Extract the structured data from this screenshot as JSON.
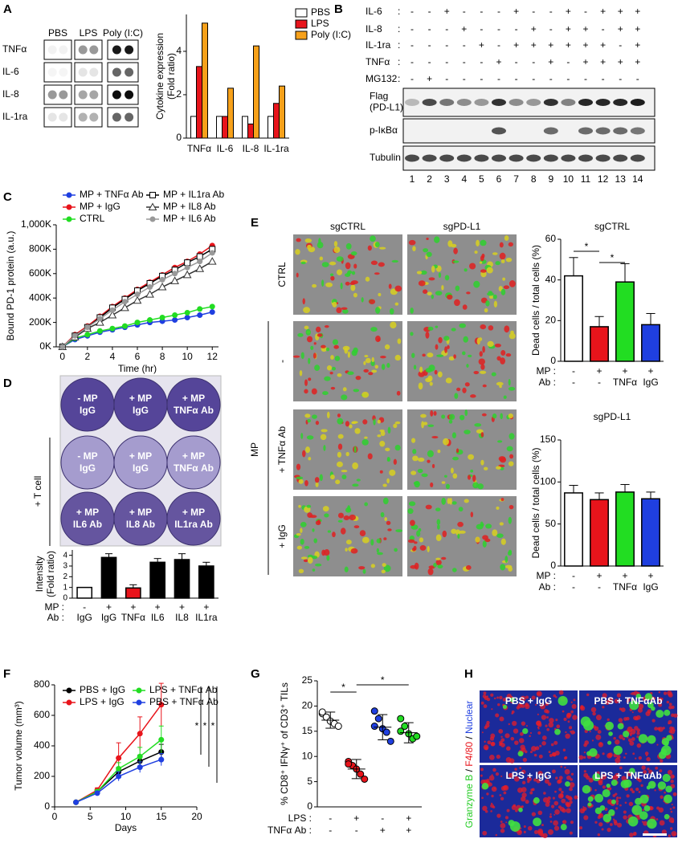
{
  "panel_labels": [
    "A",
    "B",
    "C",
    "D",
    "E",
    "F",
    "G",
    "H"
  ],
  "dot_blot": {
    "columns": [
      "PBS",
      "LPS",
      "Poly (I:C)"
    ],
    "rows": [
      "TNFα",
      "IL-6",
      "IL-8",
      "IL-1ra"
    ]
  },
  "western_blot": {
    "separator": ":",
    "treatments": [
      {
        "name": "IL-6",
        "signs": [
          "-",
          "-",
          "+",
          "-",
          "-",
          "-",
          "+",
          "-",
          "-",
          "+",
          "-",
          "+",
          "+",
          "+"
        ]
      },
      {
        "name": "IL-8",
        "signs": [
          "-",
          "-",
          "-",
          "+",
          "-",
          "-",
          "-",
          "+",
          "-",
          "+",
          "+",
          "-",
          "+",
          "+"
        ]
      },
      {
        "name": "IL-1ra",
        "signs": [
          "-",
          "-",
          "-",
          "-",
          "+",
          "-",
          "+",
          "+",
          "+",
          "+",
          "+",
          "+",
          "-",
          "+"
        ]
      },
      {
        "name": "TNFα",
        "signs": [
          "-",
          "-",
          "-",
          "-",
          "-",
          "+",
          "-",
          "-",
          "+",
          "-",
          "+",
          "+",
          "+",
          "+"
        ]
      },
      {
        "name": "MG132",
        "signs": [
          "-",
          "+",
          "-",
          "-",
          "-",
          "-",
          "-",
          "-",
          "-",
          "-",
          "-",
          "-",
          "-",
          "-"
        ]
      }
    ],
    "bands": [
      [
        "Flag",
        "(PD-L1)"
      ],
      [
        "p-IκBα"
      ],
      [
        "Tubulin"
      ]
    ],
    "lanes": [
      1,
      2,
      3,
      4,
      5,
      6,
      7,
      8,
      9,
      10,
      11,
      12,
      13,
      14
    ]
  },
  "plate": {
    "wells": [
      [
        "- MP",
        "IgG"
      ],
      [
        "+ MP",
        "IgG"
      ],
      [
        "+ MP",
        "TNFα Ab"
      ],
      [
        "- MP",
        "IgG"
      ],
      [
        "+ MP",
        "IgG"
      ],
      [
        "+ MP",
        "TNFα Ab"
      ],
      [
        "+ MP",
        "IL6 Ab"
      ],
      [
        "+ MP",
        "IL8 Ab"
      ],
      [
        "+ MP",
        "IL1ra Ab"
      ]
    ],
    "side_label": "+ T cell"
  },
  "micrographs": {
    "columns": [
      "sgCTRL",
      "sgPD-L1"
    ],
    "rows": [
      "CTRL",
      "-",
      "+ TNFα Ab",
      "+ IgG"
    ],
    "group_label": "MP"
  },
  "fluorescence": {
    "panels": [
      "PBS + IgG",
      "PBS + TNFαAb",
      "LPS + IgG",
      "LPS + TNFαAb"
    ],
    "stains": [
      {
        "name": "Granzyme B",
        "color": "#22cc22"
      },
      {
        "name": "F4/80",
        "color": "#e8141b"
      },
      {
        "name": "Nuclear",
        "color": "#1f3fe0"
      }
    ],
    "separator": " / "
  },
  "chart_data": [
    {
      "type": "bar",
      "y_label": [
        "Cytokine expression",
        "(Fold ratio)"
      ],
      "categories": [
        "TNFα",
        "IL-6",
        "IL-8",
        "IL-1ra"
      ],
      "series": [
        {
          "name": "PBS",
          "color": "#ffffff",
          "values": [
            1,
            1,
            1,
            1
          ]
        },
        {
          "name": "LPS",
          "color": "#e8141b",
          "values": [
            3.3,
            1,
            0.65,
            1.6
          ]
        },
        {
          "name": "Poly (I:C)",
          "color": "#f7a11a",
          "values": [
            5.3,
            2.3,
            4.25,
            2.4
          ]
        }
      ],
      "ylim": [
        0,
        5.7
      ],
      "yticks": [
        0,
        2,
        4
      ],
      "legend": "top-right"
    },
    {
      "type": "line",
      "x_label": "Time (hr)",
      "y_label": "Bound PD-1 protein (a.u.)",
      "x": [
        0,
        1,
        2,
        3,
        4,
        5,
        6,
        7,
        8,
        9,
        10,
        11,
        12
      ],
      "series": [
        {
          "name": "MP + TNFα Ab",
          "color": "#1f3fe0",
          "marker": "circle",
          "values": [
            0,
            60000,
            90000,
            120000,
            140000,
            160000,
            180000,
            200000,
            210000,
            220000,
            240000,
            260000,
            285000
          ]
        },
        {
          "name": "MP + IgG",
          "color": "#e8141b",
          "marker": "circle",
          "values": [
            0,
            100000,
            170000,
            250000,
            330000,
            400000,
            470000,
            530000,
            590000,
            650000,
            700000,
            760000,
            830000
          ]
        },
        {
          "name": "CTRL",
          "color": "#22dd22",
          "marker": "circle",
          "values": [
            0,
            70000,
            100000,
            130000,
            150000,
            170000,
            200000,
            220000,
            240000,
            260000,
            280000,
            310000,
            330000
          ]
        },
        {
          "name": "MP + IL1ra Ab",
          "color": "#000000",
          "marker": "square",
          "values": [
            0,
            90000,
            160000,
            240000,
            320000,
            390000,
            460000,
            520000,
            580000,
            630000,
            690000,
            740000,
            800000
          ]
        },
        {
          "name": "MP + IL8 Ab",
          "color": "#333333",
          "marker": "triangle",
          "values": [
            0,
            80000,
            150000,
            200000,
            260000,
            320000,
            380000,
            430000,
            490000,
            540000,
            590000,
            640000,
            700000
          ]
        },
        {
          "name": "MP + IL6 Ab",
          "color": "#999999",
          "marker": "circle",
          "values": [
            0,
            90000,
            160000,
            230000,
            300000,
            370000,
            430000,
            490000,
            550000,
            600000,
            650000,
            700000,
            770000
          ]
        }
      ],
      "xlim": [
        -0.5,
        12.5
      ],
      "xticks": [
        0,
        2,
        4,
        6,
        8,
        10,
        12
      ],
      "ylim": [
        0,
        1000000
      ],
      "yticks": [
        {
          "value": 0,
          "label": "0K"
        },
        {
          "value": 200000,
          "label": "200K"
        },
        {
          "value": 400000,
          "label": "400K"
        },
        {
          "value": 600000,
          "label": "600K"
        },
        {
          "value": 800000,
          "label": "800K"
        },
        {
          "value": 1000000,
          "label": "1,000K"
        }
      ]
    },
    {
      "type": "bar",
      "y_label": [
        "Intensity",
        "(Fold ratio)"
      ],
      "values": [
        1,
        3.8,
        0.95,
        3.35,
        3.6,
        3.0
      ],
      "errors": [
        null,
        0.35,
        0.3,
        0.35,
        0.55,
        0.35
      ],
      "colors": [
        "#ffffff",
        "#000000",
        "#e8141b",
        "#000000",
        "#000000",
        "#000000"
      ],
      "rows": [
        {
          "name": "MP :",
          "labels": [
            "-",
            "+",
            "+",
            "+",
            "+",
            "+"
          ]
        },
        {
          "name": "Ab :",
          "labels": [
            "IgG",
            "IgG",
            "TNFα",
            "IL6",
            "IL8",
            "IL1ra"
          ]
        }
      ],
      "ylim": [
        0,
        4.5
      ],
      "yticks": [
        0,
        1,
        2,
        3,
        4
      ]
    },
    {
      "type": "bar",
      "title": "sgCTRL",
      "y_label": "Dead cells / total cells (%)",
      "values": [
        42,
        17,
        39,
        18
      ],
      "errors": [
        9,
        5,
        9,
        5.5
      ],
      "colors": [
        "#ffffff",
        "#e8141b",
        "#22dd22",
        "#1f3fe0"
      ],
      "rows": [
        {
          "name": "MP :",
          "labels": [
            "-",
            "+",
            "+",
            "+"
          ]
        },
        {
          "name": "Ab :",
          "labels": [
            "-",
            "-",
            "TNFα",
            "IgG"
          ]
        }
      ],
      "ylim": [
        0,
        60
      ],
      "yticks": [
        0,
        20,
        40,
        60
      ],
      "annotations": [
        "*",
        "*"
      ]
    },
    {
      "type": "bar",
      "title": "sgPD-L1",
      "y_label": "Dead cells / total cells (%)",
      "values": [
        87,
        79,
        88,
        80
      ],
      "errors": [
        9,
        8,
        9,
        8
      ],
      "colors": [
        "#ffffff",
        "#e8141b",
        "#22dd22",
        "#1f3fe0"
      ],
      "rows": [
        {
          "name": "MP :",
          "labels": [
            "-",
            "+",
            "+",
            "+"
          ]
        },
        {
          "name": "Ab :",
          "labels": [
            "-",
            "-",
            "TNFα",
            "IgG"
          ]
        }
      ],
      "ylim": [
        0,
        150
      ],
      "yticks": [
        0,
        50,
        100,
        150
      ]
    },
    {
      "type": "line",
      "x_label": "Days",
      "y_label": "Tumor volume (mm³)",
      "x": [
        3,
        6,
        9,
        12,
        15
      ],
      "series": [
        {
          "name": "PBS + IgG",
          "color": "#000000",
          "marker": "circle",
          "values": [
            30,
            100,
            230,
            300,
            360
          ],
          "errors": [
            3,
            10,
            30,
            40,
            50
          ]
        },
        {
          "name": "LPS + IgG",
          "color": "#e8141b",
          "marker": "circle",
          "values": [
            30,
            110,
            320,
            480,
            670
          ],
          "errors": [
            3,
            15,
            100,
            110,
            140
          ]
        },
        {
          "name": "LPS + TNFα Ab",
          "color": "#22dd22",
          "marker": "circle",
          "values": [
            30,
            100,
            250,
            330,
            440
          ],
          "errors": [
            3,
            12,
            40,
            60,
            90
          ]
        },
        {
          "name": "PBS + TNFα Ab",
          "color": "#1f3fe0",
          "marker": "circle",
          "values": [
            30,
            90,
            200,
            260,
            310
          ],
          "errors": [
            3,
            10,
            30,
            35,
            40
          ]
        }
      ],
      "xlim": [
        0,
        20
      ],
      "xticks": [
        0,
        5,
        10,
        15,
        20
      ],
      "ylim": [
        0,
        800
      ],
      "yticks": [
        0,
        200,
        400,
        600,
        800
      ],
      "annotations": [
        "*",
        "*",
        "*"
      ]
    },
    {
      "type": "dot",
      "y_label": "% CD8⁺ IFNγ⁺ of CD3⁺ TILs",
      "points": [
        [
          18.5,
          17.8,
          17,
          16.5,
          16,
          18.8
        ],
        [
          9,
          8.2,
          7.5,
          6.5,
          5.5,
          8.5
        ],
        [
          19,
          17.5,
          15.5,
          14.8,
          13,
          16
        ],
        [
          17.5,
          16,
          14.5,
          13.5,
          14,
          15
        ]
      ],
      "means": [
        17.2,
        7.5,
        15.8,
        14.7
      ],
      "sd": [
        1.6,
        1.9,
        2.5,
        2
      ],
      "colors": [
        "#ffffff",
        "#e8141b",
        "#1f3fe0",
        "#22dd22"
      ],
      "rows": [
        {
          "name": "LPS :",
          "labels": [
            "-",
            "+",
            "-",
            "+"
          ]
        },
        {
          "name": "TNFα Ab :",
          "labels": [
            "-",
            "-",
            "+",
            "+"
          ]
        }
      ],
      "ylim": [
        0,
        25
      ],
      "yticks": [
        0,
        5,
        10,
        15,
        20,
        25
      ],
      "annotations": [
        "*",
        "*"
      ]
    }
  ]
}
